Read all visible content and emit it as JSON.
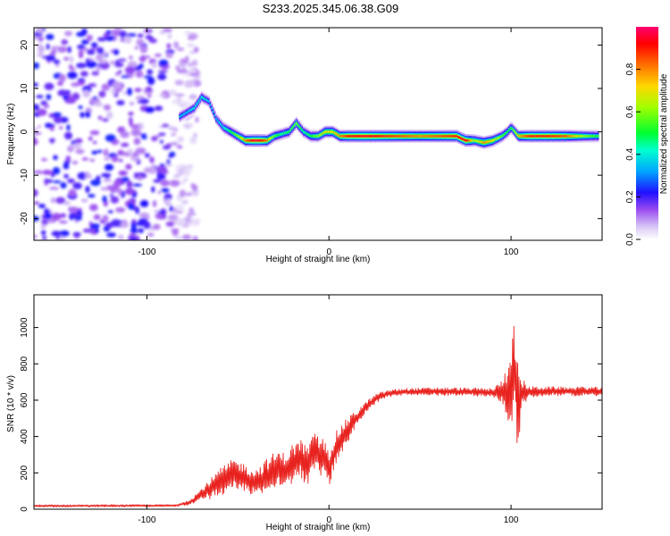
{
  "title": "S233.2025.345.06.38.G09",
  "chart_data": [
    {
      "type": "heatmap",
      "xlabel": "Height of straight line (km)",
      "ylabel": "Frequency (Hz)",
      "xlim": [
        -162,
        150
      ],
      "ylim": [
        -25,
        24
      ],
      "xticks": [
        -100,
        0,
        100
      ],
      "yticks": [
        -20,
        -10,
        0,
        10,
        20
      ],
      "colorbar": {
        "label": "Normalized spectral amplitude",
        "range": [
          0,
          1
        ],
        "ticks": [
          0,
          0.2,
          0.4,
          0.6,
          0.8
        ],
        "tick_labels": [
          "0.0",
          "0.2",
          "0.4",
          "0.6",
          "0.8"
        ]
      },
      "noise_region": {
        "x_from": -162,
        "x_to": -78
      },
      "ridge": {
        "x": [
          -82,
          -78,
          -74,
          -70,
          -66,
          -62,
          -58,
          -54,
          -50,
          -46,
          -42,
          -38,
          -34,
          -30,
          -26,
          -22,
          -18,
          -14,
          -10,
          -6,
          -2,
          2,
          6,
          10,
          20,
          30,
          40,
          50,
          60,
          70,
          75,
          80,
          85,
          90,
          95,
          98,
          100,
          104,
          110,
          120,
          130,
          140,
          148
        ],
        "freq": [
          3.5,
          4.5,
          5.5,
          8,
          7,
          3,
          1,
          0,
          -1,
          -2,
          -2,
          -2,
          -2,
          -1,
          -0.5,
          0,
          2,
          0,
          -1,
          -1,
          0,
          0,
          -1,
          -1,
          -1,
          -1,
          -1,
          -1,
          -1,
          -1,
          -2,
          -2,
          -2.5,
          -2,
          -1,
          0,
          1,
          -1,
          -1,
          -1,
          -1,
          -1,
          -1
        ],
        "amplitude": [
          0.35,
          0.35,
          0.4,
          0.4,
          0.35,
          0.35,
          0.4,
          0.5,
          0.6,
          0.8,
          0.95,
          0.95,
          0.8,
          0.55,
          0.45,
          0.5,
          0.6,
          0.45,
          0.5,
          0.6,
          0.7,
          0.7,
          0.8,
          0.9,
          0.95,
          0.9,
          0.85,
          0.8,
          0.85,
          0.9,
          0.95,
          0.6,
          0.8,
          0.7,
          0.55,
          0.5,
          0.5,
          0.75,
          0.9,
          0.9,
          0.85,
          0.6,
          0.5
        ]
      }
    },
    {
      "type": "line",
      "xlabel": "Height of straight line (km)",
      "ylabel": "SNR (10 * v/v)",
      "xlim": [
        -162,
        150
      ],
      "ylim": [
        0,
        1180
      ],
      "xticks": [
        -100,
        0,
        100
      ],
      "yticks": [
        0,
        200,
        400,
        600,
        800,
        1000
      ],
      "series": [
        {
          "name": "SNR",
          "color": "#e8231f",
          "envelope_x": [
            -162,
            -84,
            -76,
            -70,
            -64,
            -58,
            -52,
            -48,
            -44,
            -40,
            -36,
            -32,
            -28,
            -24,
            -20,
            -16,
            -12,
            -8,
            -4,
            0,
            4,
            8,
            12,
            16,
            20,
            26,
            32,
            40,
            60,
            80,
            90,
            95,
            98,
            100,
            102,
            104,
            106,
            110,
            120,
            130,
            140,
            150
          ],
          "envelope_y": [
            18,
            20,
            40,
            80,
            120,
            160,
            190,
            180,
            160,
            150,
            170,
            200,
            230,
            210,
            250,
            280,
            240,
            300,
            290,
            230,
            340,
            400,
            460,
            510,
            560,
            610,
            635,
            645,
            648,
            645,
            640,
            650,
            640,
            700,
            760,
            520,
            640,
            645,
            650,
            648,
            650,
            645
          ],
          "noise_amplitude": [
            6,
            6,
            15,
            35,
            60,
            80,
            90,
            80,
            75,
            70,
            90,
            100,
            90,
            100,
            110,
            110,
            110,
            120,
            110,
            110,
            90,
            80,
            60,
            40,
            30,
            25,
            20,
            20,
            22,
            22,
            25,
            60,
            180,
            260,
            280,
            240,
            80,
            30,
            25,
            25,
            25,
            25
          ]
        }
      ]
    }
  ]
}
